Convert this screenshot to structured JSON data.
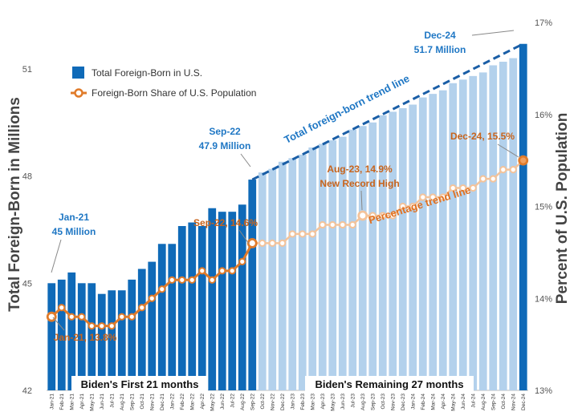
{
  "chart_data": {
    "type": "bar",
    "title": "",
    "ylabel": "Total Foreign-Born in Millions",
    "y2label": "Percent of U.S. Population",
    "ylim": [
      42,
      52.3
    ],
    "y2lim": [
      13,
      17
    ],
    "y_ticks": [
      {
        "value": 42,
        "label": "42"
      },
      {
        "value": 45,
        "label": "45"
      },
      {
        "value": 48,
        "label": "48"
      },
      {
        "value": 51,
        "label": "51"
      }
    ],
    "y2_ticks": [
      {
        "value": 13,
        "label": "13%"
      },
      {
        "value": 14,
        "label": "14%"
      },
      {
        "value": 15,
        "label": "15%"
      },
      {
        "value": 16,
        "label": "16%"
      },
      {
        "value": 17,
        "label": "17%"
      }
    ],
    "categories": [
      "Jan-21",
      "Feb-21",
      "Mar-21",
      "Apr-21",
      "May-21",
      "Jun-21",
      "Jul-21",
      "Aug-21",
      "Sep-21",
      "Oct-21",
      "Nov-21",
      "Dec-21",
      "Jan-22",
      "Feb-22",
      "Mar-22",
      "Apr-22",
      "May-22",
      "Jun-22",
      "Jul-22",
      "Aug-22",
      "Sep-22",
      "Oct-22",
      "Nov-22",
      "Dec-22",
      "Jan-23",
      "Feb-23",
      "Mar-23",
      "Apr-23",
      "May-23",
      "Jun-23",
      "Jul-23",
      "Aug-23",
      "Sep-23",
      "Oct-23",
      "Nov-23",
      "Dec-23",
      "Jan-24",
      "Feb-24",
      "Mar-24",
      "Apr-24",
      "May-24",
      "Jun-24",
      "Jul-24",
      "Aug-24",
      "Sep-24",
      "Oct-24",
      "Nov-24",
      "Dec-24"
    ],
    "tick_labels": [
      "Jan-21",
      "Feb-21",
      "Mar-21",
      "Apr-21",
      "May-21",
      "Jun-21",
      "Jul-21",
      "Aug-21",
      "Sep-21",
      "Oct-21",
      "Nov-21",
      "Dec-21",
      "Jan-22",
      "Feb-22",
      "Mar-22",
      "Apr-22",
      "May-22",
      "Jun-22",
      "Jul-22",
      "Aug-22",
      "Sep-22",
      "Oct-22",
      "Nov-22",
      "Dec-22",
      "Jan-23",
      "Feb-23",
      "Mar-23",
      "Apr-23",
      "May-23",
      "Jun-23",
      "Jul-23",
      "Aug-23",
      "Sep-23",
      "Oct-23",
      "Nov-23",
      "Dec-23",
      "Jan-24",
      "Feb-24",
      "Mar-24",
      "Apr-24",
      "May-24",
      "Jun-24",
      "Jul-24",
      "Aug-24",
      "Sep-24",
      "Oct-24",
      "Nov-24",
      "Dec-24"
    ],
    "series": [
      {
        "name": "Total Foreign-Born in U.S.",
        "type": "bar",
        "axis": "left",
        "values": [
          45.0,
          45.1,
          45.3,
          45.0,
          45.0,
          44.7,
          44.8,
          44.8,
          45.1,
          45.4,
          45.6,
          46.1,
          46.1,
          46.6,
          46.7,
          46.6,
          47.1,
          47.0,
          47.0,
          47.2,
          47.9,
          48.1,
          48.2,
          48.4,
          48.5,
          48.6,
          48.8,
          48.9,
          49.0,
          49.1,
          49.3,
          49.4,
          49.5,
          49.7,
          49.8,
          49.9,
          50.0,
          50.2,
          50.3,
          50.4,
          50.6,
          50.7,
          50.8,
          50.9,
          51.1,
          51.2,
          51.3,
          51.7
        ],
        "solid_through": "Sep-22"
      },
      {
        "name": "Foreign-Born Share of U.S. Population",
        "type": "line",
        "axis": "right",
        "values": [
          13.8,
          13.9,
          13.8,
          13.8,
          13.7,
          13.7,
          13.7,
          13.8,
          13.8,
          13.9,
          14.0,
          14.1,
          14.2,
          14.2,
          14.2,
          14.3,
          14.2,
          14.3,
          14.3,
          14.4,
          14.6,
          14.6,
          14.6,
          14.6,
          14.7,
          14.7,
          14.7,
          14.8,
          14.8,
          14.8,
          14.8,
          14.9,
          14.9,
          14.9,
          14.9,
          15.0,
          15.0,
          15.1,
          15.1,
          15.1,
          15.2,
          15.2,
          15.2,
          15.3,
          15.3,
          15.4,
          15.4,
          15.5
        ],
        "solid_through": "Sep-22"
      }
    ],
    "legend": {
      "position": "top-left",
      "items": [
        "Total Foreign-Born in U.S.",
        "Foreign-Born Share of U.S. Population"
      ]
    },
    "annotations": [
      {
        "text": "Jan-21",
        "text2": "45 Million",
        "color": "#1f77c4"
      },
      {
        "text": "Jan-21, 13.8%",
        "color": "#c8641c"
      },
      {
        "text": "Sep-22",
        "text2": "47.9 Million",
        "color": "#1f77c4"
      },
      {
        "text": "Sep-22, 14.6%",
        "color": "#c8641c"
      },
      {
        "text": "Aug-23, 14.9%",
        "text2": "New Record High",
        "color": "#c8641c"
      },
      {
        "text": "Dec-24",
        "text2": "51.7 Million",
        "color": "#1f77c4"
      },
      {
        "text": "Dec-24, 15.5%",
        "color": "#c8641c"
      },
      {
        "text": "Total foreign-born trend line",
        "color": "#1f77c4"
      },
      {
        "text": "Percentage trend line",
        "color": "#e07020"
      }
    ],
    "period_labels": [
      "Biden's First 21 months",
      "Biden's Remaining 27 months"
    ]
  },
  "colors": {
    "bar": "#0f6ab8",
    "bar_future": "#b3d1ec",
    "line": "#e07b2a",
    "line_future": "#f4c39a",
    "trend_bar": "#1a5ea6",
    "blue_text": "#1f77c4",
    "orange_text": "#c8641c",
    "axis_text": "#555555"
  }
}
